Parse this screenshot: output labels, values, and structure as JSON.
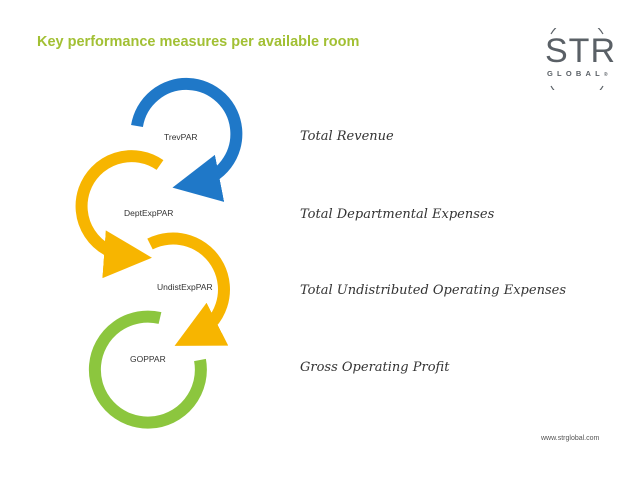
{
  "header": {
    "title": "Key performance measures per available room"
  },
  "logo": {
    "main": "STR",
    "sub": "GLOBAL",
    "mark": "®"
  },
  "rings": [
    {
      "label": "TrevPAR",
      "color": "#1f78c8"
    },
    {
      "label": "DeptExpPAR",
      "color": "#f7b500"
    },
    {
      "label": "UndistExpPAR",
      "color": "#f7b500"
    },
    {
      "label": "GOPPAR",
      "color": "#8cc63e"
    }
  ],
  "measures": [
    "Total Revenue",
    "Total Departmental Expenses",
    "Total Undistributed Operating Expenses",
    "Gross Operating Profit"
  ],
  "footer": {
    "url": "www.strglobal.com"
  }
}
